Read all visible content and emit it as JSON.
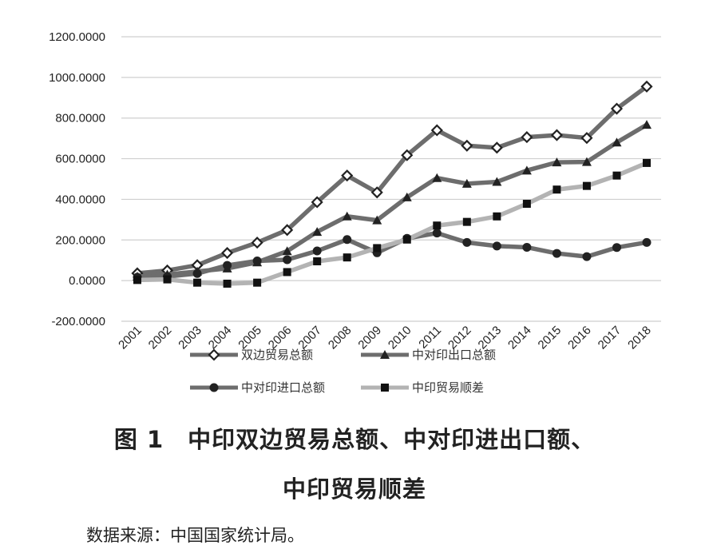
{
  "chart_data": {
    "type": "line",
    "categories": [
      "2001",
      "2002",
      "2003",
      "2004",
      "2005",
      "2006",
      "2007",
      "2008",
      "2009",
      "2010",
      "2011",
      "2012",
      "2013",
      "2014",
      "2015",
      "2016",
      "2017",
      "2018"
    ],
    "y_tick_labels": [
      "1200.0000",
      "1000.0000",
      "800.0000",
      "600.0000",
      "400.0000",
      "200.0000",
      "0.0000",
      "-200.0000"
    ],
    "ylim": [
      -200,
      1200
    ],
    "grid": true,
    "legend_position": "bottom",
    "series": [
      {
        "name": "双边贸易总额",
        "marker": "diamond",
        "color": "#6d6d6d",
        "values": [
          36,
          50,
          76,
          136,
          187,
          249,
          386,
          517,
          434,
          617,
          740,
          664,
          654,
          706,
          716,
          702,
          846,
          955
        ]
      },
      {
        "name": "中对印出口总额",
        "marker": "triangle",
        "color": "#6d6d6d",
        "values": [
          20,
          30,
          45,
          60,
          90,
          145,
          240,
          316,
          297,
          410,
          505,
          477,
          486,
          542,
          582,
          584,
          680,
          767
        ]
      },
      {
        "name": "中对印进口总额",
        "marker": "circle",
        "color": "#6d6d6d",
        "values": [
          17,
          20,
          35,
          75,
          97,
          103,
          146,
          202,
          137,
          208,
          234,
          188,
          170,
          164,
          134,
          118,
          163,
          188
        ]
      },
      {
        "name": "中印贸易顺差",
        "marker": "square",
        "color": "#b3b3b3",
        "values": [
          3,
          6,
          -10,
          -15,
          -10,
          42,
          95,
          114,
          160,
          202,
          271,
          289,
          316,
          378,
          448,
          466,
          517,
          579
        ]
      }
    ]
  },
  "caption": {
    "line1": "图 1　中印双边贸易总额、中对印进出口额、",
    "line2": "中印贸易顺差"
  },
  "source": "数据来源：中国国家统计局。"
}
